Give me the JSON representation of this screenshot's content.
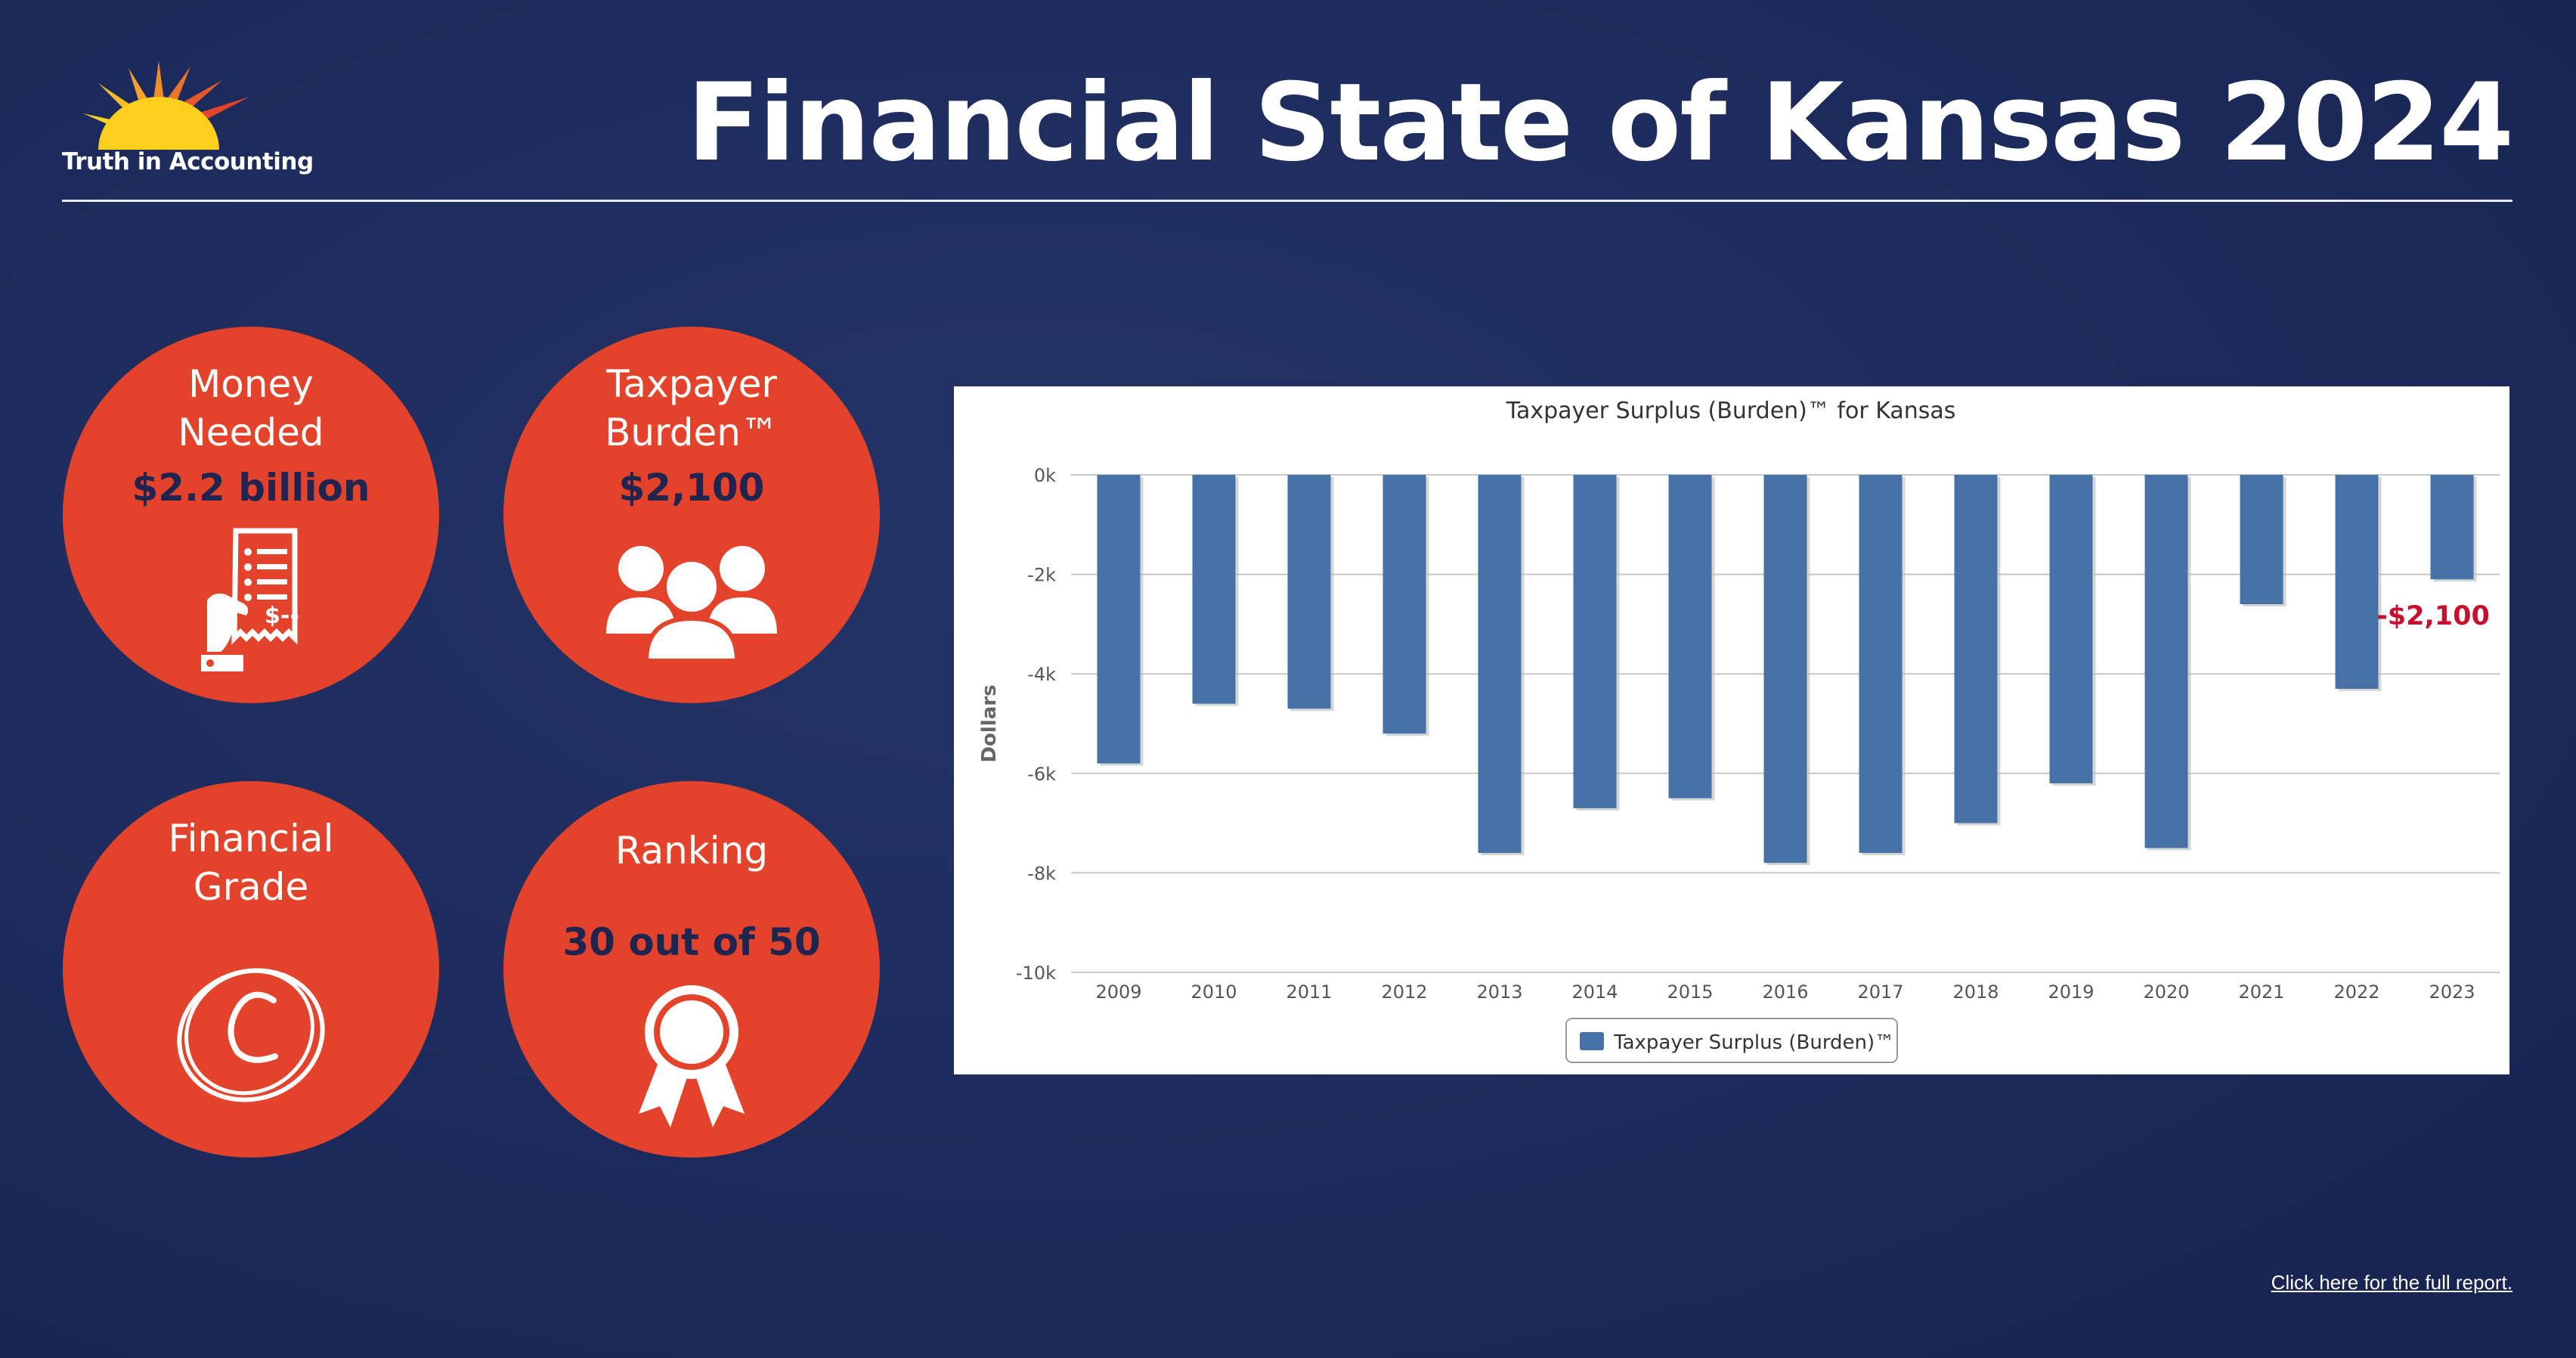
{
  "header": {
    "title": "Financial State of Kansas 2024",
    "logo_text": "Truth in Accounting"
  },
  "cards": [
    {
      "label_line1": "Money",
      "label_line2": "Needed",
      "value": "$2.2 billion",
      "icon": "receipt-payment-icon"
    },
    {
      "label_line1": "Taxpayer",
      "label_line2": "Burden™",
      "value": "$2,100",
      "icon": "people-group-icon"
    },
    {
      "label_line1": "Financial",
      "label_line2": "Grade",
      "value": "",
      "icon": "grade-c-icon"
    },
    {
      "label_line1": "Ranking",
      "label_line2": "",
      "value": "30 out of 50",
      "icon": "award-ribbon-icon"
    }
  ],
  "chart_data": {
    "type": "bar",
    "title": "Taxpayer Surplus (Burden)™ for Kansas",
    "xlabel": "",
    "ylabel": "Dollars",
    "categories": [
      "2009",
      "2010",
      "2011",
      "2012",
      "2013",
      "2014",
      "2015",
      "2016",
      "2017",
      "2018",
      "2019",
      "2020",
      "2021",
      "2022",
      "2023"
    ],
    "series": [
      {
        "name": "Taxpayer Surplus (Burden)™",
        "values": [
          -5800,
          -4600,
          -4700,
          -5200,
          -7600,
          -6700,
          -6500,
          -7800,
          -7600,
          -7000,
          -6200,
          -7500,
          -2600,
          -4300,
          -2100
        ]
      }
    ],
    "ylim": [
      -10000,
      0
    ],
    "yticks": [
      "0k",
      "-2k",
      "-4k",
      "-6k",
      "-8k",
      "-10k"
    ],
    "ytick_values": [
      0,
      -2000,
      -4000,
      -6000,
      -8000,
      -10000
    ],
    "annotation": "-$2,100",
    "grid": true,
    "legend_position": "bottom",
    "colors": {
      "bar": "#4672a8",
      "annotation": "#c8102e"
    }
  },
  "footer": {
    "link_text": "Click here for the full report."
  },
  "colors": {
    "background": "#1d2b5c",
    "circle": "#e2432a",
    "value_text": "#1f2550"
  }
}
